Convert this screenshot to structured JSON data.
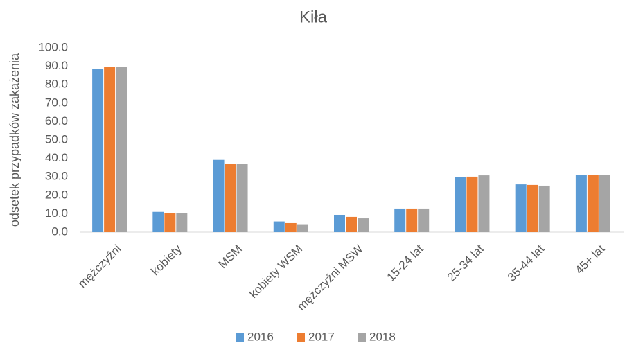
{
  "chart_data": {
    "type": "bar",
    "title": "Kiła",
    "y_label": "odsetek przypadków zakażenia",
    "categories": [
      "mężczyźni",
      "kobiety",
      "MSM",
      "kobiety WSM",
      "mężczyźni MSW",
      "15-24 lat",
      "25-34 lat",
      "35-44 lat",
      "45+ lat"
    ],
    "series": [
      {
        "name": "2016",
        "color": "#5b9bd5",
        "values": [
          88.5,
          11.0,
          39.2,
          5.8,
          9.4,
          12.8,
          29.7,
          25.9,
          31.0
        ]
      },
      {
        "name": "2017",
        "color": "#ed7d31",
        "values": [
          89.5,
          10.3,
          37.0,
          4.9,
          8.3,
          12.8,
          30.1,
          25.6,
          31.0
        ]
      },
      {
        "name": "2018",
        "color": "#a5a5a5",
        "values": [
          89.5,
          10.3,
          37.0,
          4.3,
          7.5,
          12.8,
          30.8,
          25.2,
          31.0
        ]
      }
    ],
    "ylim": [
      0,
      100
    ],
    "yticks": [
      {
        "value": 0,
        "label": "0.0"
      },
      {
        "value": 10,
        "label": "10.0"
      },
      {
        "value": 20,
        "label": "20.0"
      },
      {
        "value": 30,
        "label": "30.0"
      },
      {
        "value": 40,
        "label": "40.0"
      },
      {
        "value": 50,
        "label": "50.0"
      },
      {
        "value": 60,
        "label": "60.0"
      },
      {
        "value": 70,
        "label": "70.0"
      },
      {
        "value": 80,
        "label": "80.0"
      },
      {
        "value": 90,
        "label": "90.0"
      },
      {
        "value": 100,
        "label": "100.0"
      }
    ],
    "legend": "bottom"
  }
}
